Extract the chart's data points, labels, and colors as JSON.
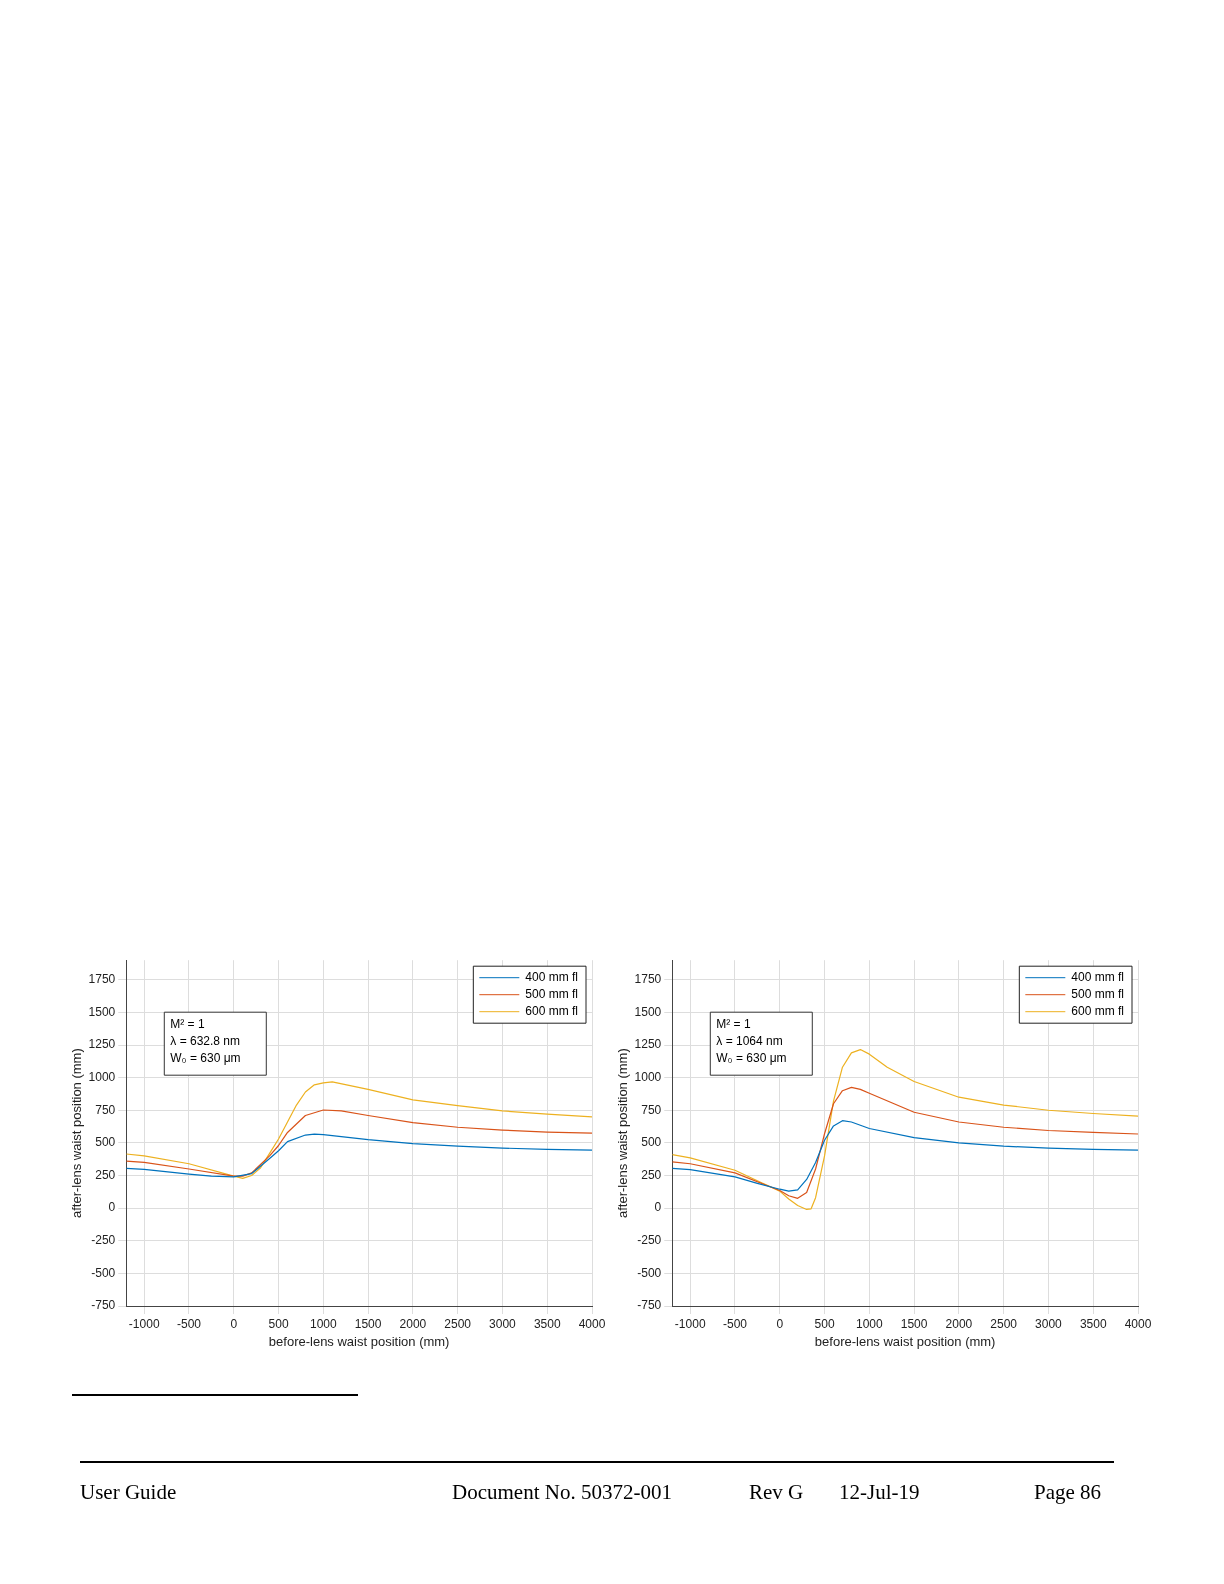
{
  "chart_data": [
    {
      "type": "line",
      "xlabel": "before-lens waist position (mm)",
      "ylabel": "after-lens waist position (mm)",
      "annotations": [
        "M² = 1",
        "λ = 632.8 nm",
        "W₀ = 630 μm"
      ],
      "xlim": [
        -1200,
        4000
      ],
      "xticks": [
        -1000,
        -500,
        0,
        500,
        1000,
        1500,
        2000,
        2500,
        3000,
        3500,
        4000
      ],
      "ylim": [
        -750,
        1900
      ],
      "yticks": [
        -750,
        -500,
        -250,
        0,
        250,
        500,
        750,
        1000,
        1250,
        1500,
        1750
      ],
      "grid": true,
      "legend": "top right",
      "marker": "none",
      "line_style": "solid",
      "series": [
        {
          "name": "400 mm fl",
          "color": "#0072bd",
          "x": [
            -1200,
            -1000,
            -500,
            -250,
            0,
            200,
            400,
            500,
            600,
            800,
            900,
            1000,
            1500,
            2000,
            2500,
            3000,
            3500,
            4000
          ],
          "values": [
            305,
            297,
            260,
            245,
            240,
            265,
            380,
            440,
            510,
            560,
            567,
            563,
            525,
            495,
            475,
            460,
            450,
            445
          ]
        },
        {
          "name": "500 mm fl",
          "color": "#d95319",
          "x": [
            -1200,
            -1000,
            -500,
            0,
            100,
            200,
            400,
            500,
            600,
            800,
            1000,
            1200,
            1500,
            2000,
            2500,
            3000,
            3500,
            4000
          ],
          "values": [
            360,
            350,
            300,
            245,
            245,
            270,
            400,
            480,
            580,
            710,
            752,
            745,
            710,
            655,
            620,
            598,
            583,
            575
          ]
        },
        {
          "name": "600 mm fl",
          "color": "#edb120",
          "x": [
            -1200,
            -1000,
            -500,
            0,
            100,
            200,
            300,
            400,
            500,
            600,
            700,
            800,
            900,
            1000,
            1100,
            1500,
            2000,
            2500,
            3000,
            3500,
            4000
          ],
          "values": [
            415,
            400,
            340,
            245,
            228,
            250,
            310,
            420,
            530,
            660,
            790,
            890,
            945,
            960,
            968,
            910,
            830,
            785,
            745,
            720,
            700
          ]
        }
      ]
    },
    {
      "type": "line",
      "xlabel": "before-lens waist position (mm)",
      "ylabel": "after-lens waist position (mm)",
      "annotations": [
        "M² = 1",
        "λ = 1064 nm",
        "W₀ = 630 μm",
        "User Guide",
        "Document No. 50372-001",
        "Rev G",
        "12-Jul-19",
        "Page 86"
      ],
      "xlim": [
        -1200,
        4000
      ],
      "xticks": [
        -1000,
        -500,
        0,
        500,
        1000,
        1500,
        2000,
        2500,
        3000,
        3500,
        4000
      ],
      "ylim": [
        -750,
        1900
      ],
      "yticks": [
        -750,
        -500,
        -250,
        0,
        250,
        500,
        750,
        1000,
        1250,
        1500,
        1750
      ],
      "grid": true,
      "legend": "top right",
      "marker": "none",
      "line_style": "solid",
      "series": [
        {
          "name": "400 mm fl",
          "color": "#0072bd",
          "x": [
            -1200,
            -1000,
            -500,
            -250,
            0,
            100,
            200,
            300,
            400,
            500,
            600,
            700,
            800,
            1000,
            1500,
            2000,
            2500,
            3000,
            3500,
            4000
          ],
          "values": [
            305,
            295,
            240,
            190,
            145,
            130,
            140,
            220,
            350,
            520,
            630,
            670,
            660,
            610,
            540,
            500,
            475,
            460,
            450,
            445
          ]
        },
        {
          "name": "500 mm fl",
          "color": "#d95319",
          "x": [
            -1200,
            -1000,
            -500,
            0,
            100,
            200,
            300,
            400,
            500,
            600,
            700,
            800,
            900,
            1000,
            1500,
            2000,
            2500,
            3000,
            3500,
            4000
          ],
          "values": [
            355,
            340,
            270,
            135,
            95,
            75,
            120,
            300,
            570,
            800,
            900,
            925,
            910,
            880,
            735,
            660,
            620,
            595,
            580,
            568
          ]
        },
        {
          "name": "600 mm fl",
          "color": "#edb120",
          "x": [
            -1200,
            -1000,
            -500,
            0,
            100,
            200,
            300,
            350,
            400,
            500,
            600,
            700,
            800,
            900,
            1000,
            1200,
            1500,
            2000,
            2500,
            3000,
            3500,
            4000
          ],
          "values": [
            410,
            385,
            290,
            130,
            70,
            20,
            -10,
            -5,
            80,
            400,
            820,
            1080,
            1190,
            1215,
            1180,
            1080,
            970,
            850,
            790,
            750,
            725,
            705
          ]
        }
      ]
    }
  ]
}
